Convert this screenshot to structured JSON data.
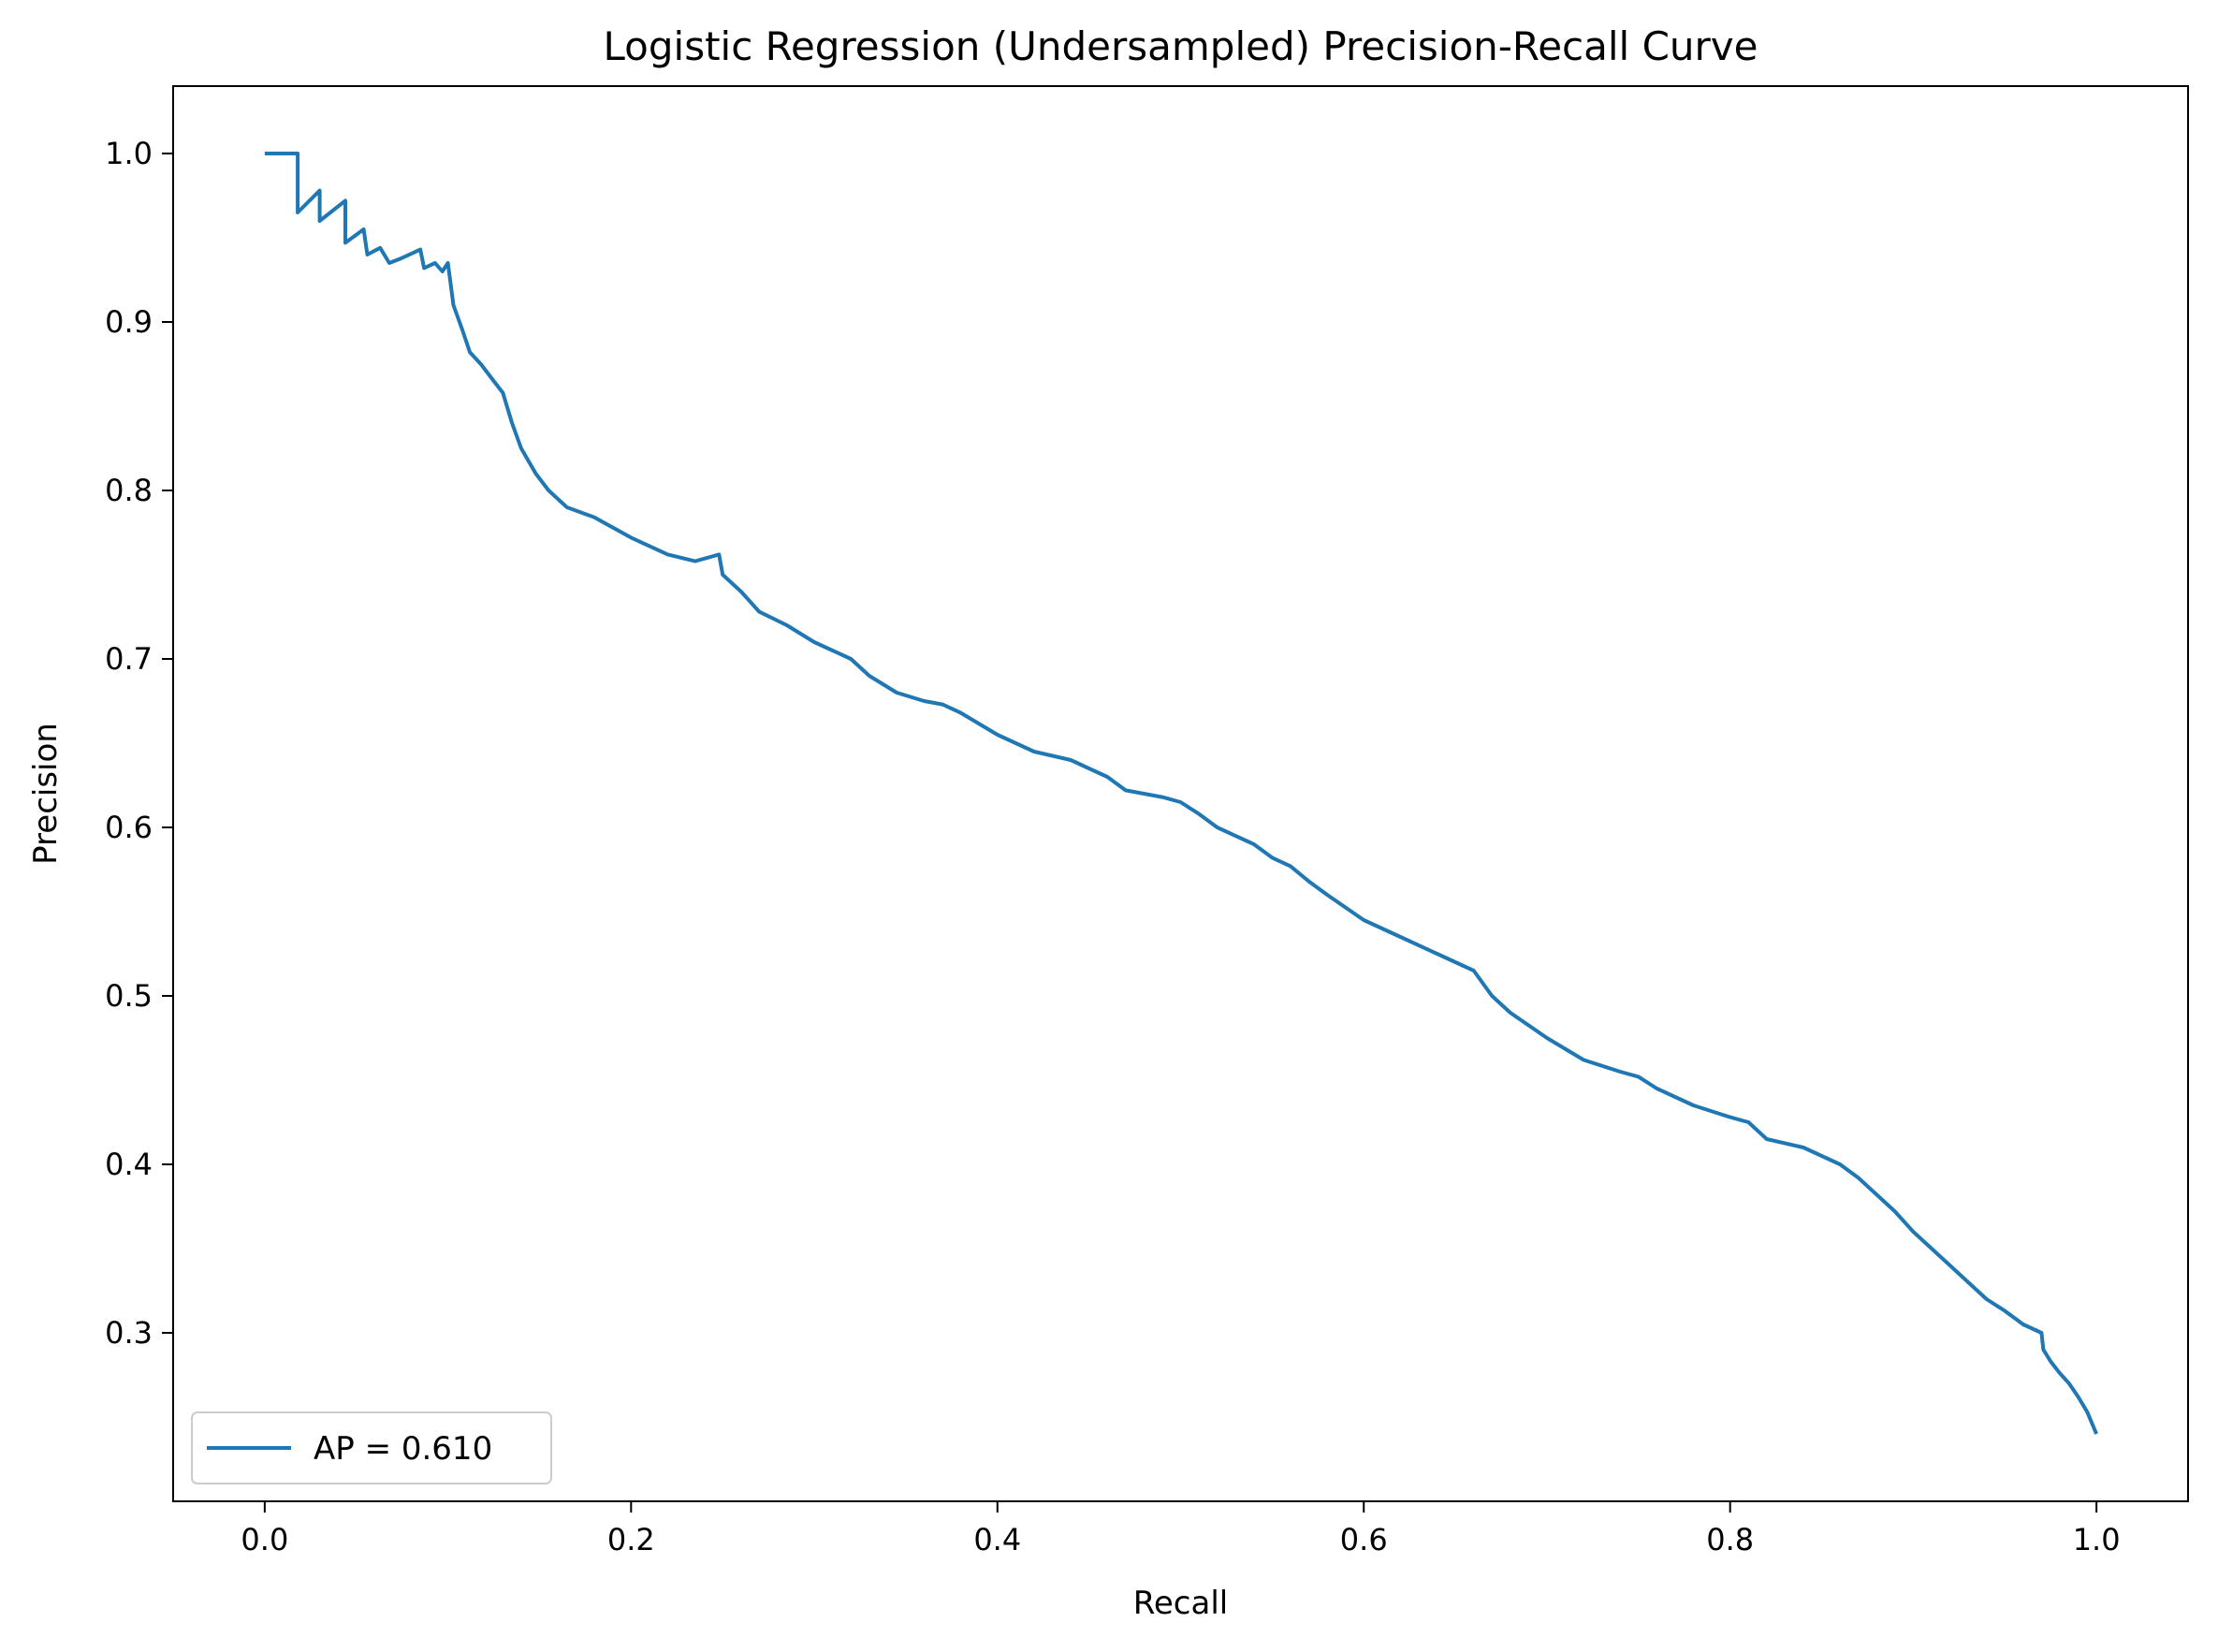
{
  "chart_data": {
    "type": "line",
    "title": "Logistic Regression (Undersampled) Precision-Recall Curve",
    "xlabel": "Recall",
    "ylabel": "Precision",
    "xlim": [
      -0.05,
      1.05
    ],
    "ylim": [
      0.2,
      1.04
    ],
    "xticks": [
      0.0,
      0.2,
      0.4,
      0.6,
      0.8,
      1.0
    ],
    "xtick_labels": [
      "0.0",
      "0.2",
      "0.4",
      "0.6",
      "0.8",
      "1.0"
    ],
    "yticks": [
      0.3,
      0.4,
      0.5,
      0.6,
      0.7,
      0.8,
      0.9,
      1.0
    ],
    "ytick_labels": [
      "0.3",
      "0.4",
      "0.5",
      "0.6",
      "0.7",
      "0.8",
      "0.9",
      "1.0"
    ],
    "grid": false,
    "legend_position": "lower-left",
    "series": [
      {
        "name": "AP = 0.610",
        "color": "#1f77b4",
        "x": [
          0.0,
          0.018,
          0.018,
          0.03,
          0.03,
          0.044,
          0.044,
          0.054,
          0.056,
          0.063,
          0.068,
          0.075,
          0.085,
          0.087,
          0.093,
          0.097,
          0.1,
          0.103,
          0.108,
          0.112,
          0.118,
          0.125,
          0.13,
          0.135,
          0.14,
          0.148,
          0.155,
          0.165,
          0.18,
          0.2,
          0.22,
          0.235,
          0.248,
          0.25,
          0.26,
          0.27,
          0.285,
          0.3,
          0.31,
          0.32,
          0.33,
          0.345,
          0.36,
          0.37,
          0.38,
          0.4,
          0.42,
          0.44,
          0.45,
          0.46,
          0.47,
          0.48,
          0.49,
          0.5,
          0.51,
          0.52,
          0.54,
          0.55,
          0.56,
          0.57,
          0.58,
          0.6,
          0.62,
          0.64,
          0.65,
          0.66,
          0.67,
          0.68,
          0.7,
          0.72,
          0.74,
          0.75,
          0.76,
          0.78,
          0.8,
          0.81,
          0.82,
          0.84,
          0.86,
          0.87,
          0.88,
          0.89,
          0.9,
          0.91,
          0.92,
          0.93,
          0.94,
          0.95,
          0.96,
          0.97,
          0.971,
          0.975,
          0.98,
          0.985,
          0.99,
          0.995,
          1.0
        ],
        "y": [
          1.0,
          1.0,
          0.965,
          0.978,
          0.96,
          0.972,
          0.947,
          0.955,
          0.94,
          0.944,
          0.935,
          0.938,
          0.943,
          0.932,
          0.935,
          0.93,
          0.935,
          0.91,
          0.895,
          0.882,
          0.875,
          0.865,
          0.858,
          0.84,
          0.825,
          0.81,
          0.8,
          0.79,
          0.784,
          0.772,
          0.762,
          0.758,
          0.762,
          0.75,
          0.74,
          0.728,
          0.72,
          0.71,
          0.705,
          0.7,
          0.69,
          0.68,
          0.675,
          0.673,
          0.668,
          0.655,
          0.645,
          0.64,
          0.635,
          0.63,
          0.622,
          0.62,
          0.618,
          0.615,
          0.608,
          0.6,
          0.59,
          0.582,
          0.577,
          0.568,
          0.56,
          0.545,
          0.535,
          0.525,
          0.52,
          0.515,
          0.5,
          0.49,
          0.475,
          0.462,
          0.455,
          0.452,
          0.445,
          0.435,
          0.428,
          0.425,
          0.415,
          0.41,
          0.4,
          0.392,
          0.382,
          0.372,
          0.36,
          0.35,
          0.34,
          0.33,
          0.32,
          0.313,
          0.305,
          0.3,
          0.29,
          0.283,
          0.276,
          0.27,
          0.262,
          0.253,
          0.24
        ]
      }
    ]
  }
}
